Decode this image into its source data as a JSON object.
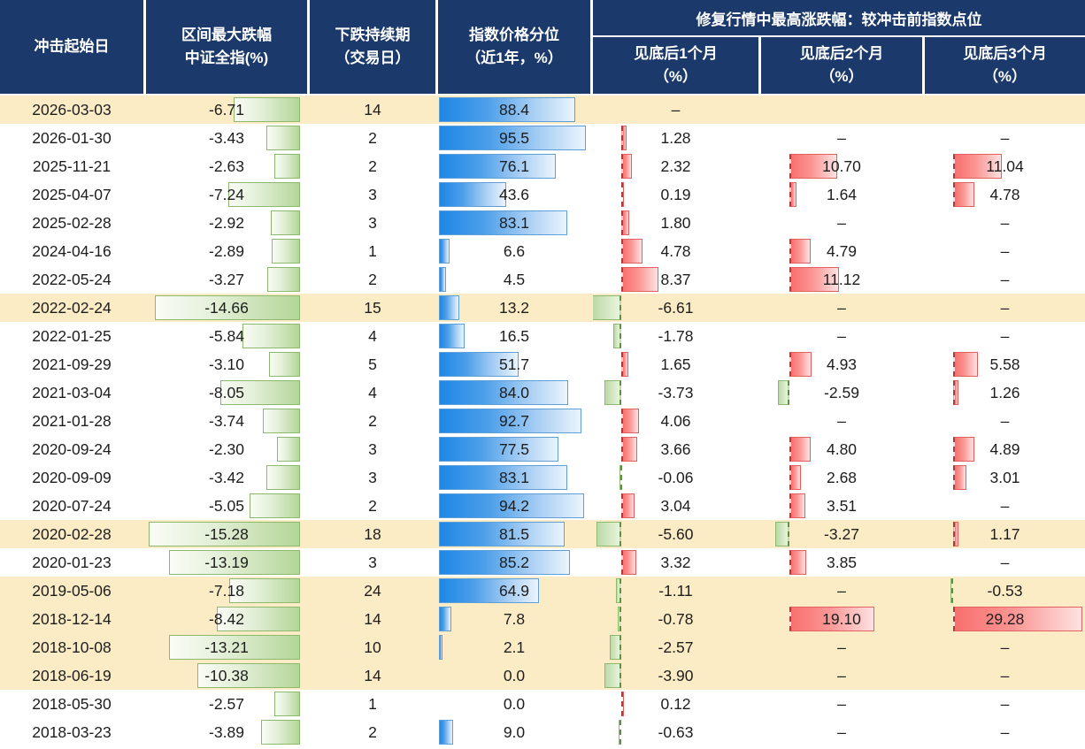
{
  "colors": {
    "header_bg": "#1b3a6b",
    "header_text": "#ffffff",
    "highlight_row_bg": "#fbecc6",
    "drawdown_bar_green": "#b4d698",
    "percentile_bar_blue": "#1e87e6",
    "gain_bar_red": "#f8706e",
    "loss_bar_green": "#bcd9a6"
  },
  "header": {
    "start_date": "冲击起始日",
    "max_drawdown_line1": "区间最大跌幅",
    "max_drawdown_line2": "中证全指(%)",
    "duration_line1": "下跌持续期",
    "duration_line2": "（交易日）",
    "percentile_line1": "指数价格分位",
    "percentile_line2": "（近1年，%）",
    "recovery_title": "修复行情中最高涨跌幅：较冲击前指数点位",
    "month1_line1": "见底后1个月",
    "month1_line2": "（%）",
    "month2_line1": "见底后2个月",
    "month2_line2": "（%）",
    "month3_line1": "见底后3个月",
    "month3_line2": "（%）"
  },
  "chart_data": {
    "type": "table",
    "columns": [
      "冲击起始日",
      "区间最大跌幅 中证全指(%)",
      "下跌持续期（交易日）",
      "指数价格分位（近1年，%）",
      "见底后1个月（%）",
      "见底后2个月（%）",
      "见底后3个月（%）"
    ],
    "rows": [
      {
        "date": "2026-03-03",
        "dd": "-6.71",
        "dur": "14",
        "pct": "88.4",
        "m1": "–",
        "m2": "",
        "m3": "",
        "highlight": true
      },
      {
        "date": "2026-01-30",
        "dd": "-3.43",
        "dur": "2",
        "pct": "95.5",
        "m1": "1.28",
        "m2": "–",
        "m3": "–",
        "highlight": false
      },
      {
        "date": "2025-11-21",
        "dd": "-2.63",
        "dur": "2",
        "pct": "76.1",
        "m1": "2.32",
        "m2": "10.70",
        "m3": "11.04",
        "highlight": false
      },
      {
        "date": "2025-04-07",
        "dd": "-7.24",
        "dur": "3",
        "pct": "43.6",
        "m1": "0.19",
        "m2": "1.64",
        "m3": "4.78",
        "highlight": false
      },
      {
        "date": "2025-02-28",
        "dd": "-2.92",
        "dur": "3",
        "pct": "83.1",
        "m1": "1.80",
        "m2": "–",
        "m3": "–",
        "highlight": false
      },
      {
        "date": "2024-04-16",
        "dd": "-2.89",
        "dur": "1",
        "pct": "6.6",
        "m1": "4.78",
        "m2": "4.79",
        "m3": "–",
        "highlight": false
      },
      {
        "date": "2022-05-24",
        "dd": "-3.27",
        "dur": "2",
        "pct": "4.5",
        "m1": "8.37",
        "m2": "11.12",
        "m3": "–",
        "highlight": false
      },
      {
        "date": "2022-02-24",
        "dd": "-14.66",
        "dur": "15",
        "pct": "13.2",
        "m1": "-6.61",
        "m2": "–",
        "m3": "–",
        "highlight": true
      },
      {
        "date": "2022-01-25",
        "dd": "-5.84",
        "dur": "4",
        "pct": "16.5",
        "m1": "-1.78",
        "m2": "–",
        "m3": "–",
        "highlight": false
      },
      {
        "date": "2021-09-29",
        "dd": "-3.10",
        "dur": "5",
        "pct": "51.7",
        "m1": "1.65",
        "m2": "4.93",
        "m3": "5.58",
        "highlight": false
      },
      {
        "date": "2021-03-04",
        "dd": "-8.05",
        "dur": "4",
        "pct": "84.0",
        "m1": "-3.73",
        "m2": "-2.59",
        "m3": "1.26",
        "highlight": false
      },
      {
        "date": "2021-01-28",
        "dd": "-3.74",
        "dur": "2",
        "pct": "92.7",
        "m1": "4.06",
        "m2": "–",
        "m3": "–",
        "highlight": false
      },
      {
        "date": "2020-09-24",
        "dd": "-2.30",
        "dur": "3",
        "pct": "77.5",
        "m1": "3.66",
        "m2": "4.80",
        "m3": "4.89",
        "highlight": false
      },
      {
        "date": "2020-09-09",
        "dd": "-3.42",
        "dur": "3",
        "pct": "83.1",
        "m1": "-0.06",
        "m2": "2.68",
        "m3": "3.01",
        "highlight": false
      },
      {
        "date": "2020-07-24",
        "dd": "-5.05",
        "dur": "2",
        "pct": "94.2",
        "m1": "3.04",
        "m2": "3.51",
        "m3": "–",
        "highlight": false
      },
      {
        "date": "2020-02-28",
        "dd": "-15.28",
        "dur": "18",
        "pct": "81.5",
        "m1": "-5.60",
        "m2": "-3.27",
        "m3": "1.17",
        "highlight": true
      },
      {
        "date": "2020-01-23",
        "dd": "-13.19",
        "dur": "3",
        "pct": "85.2",
        "m1": "3.32",
        "m2": "3.85",
        "m3": "–",
        "highlight": false
      },
      {
        "date": "2019-05-06",
        "dd": "-7.18",
        "dur": "24",
        "pct": "64.9",
        "m1": "-1.11",
        "m2": "–",
        "m3": "-0.53",
        "highlight": true
      },
      {
        "date": "2018-12-14",
        "dd": "-8.42",
        "dur": "14",
        "pct": "7.8",
        "m1": "-0.78",
        "m2": "19.10",
        "m3": "29.28",
        "highlight": true
      },
      {
        "date": "2018-10-08",
        "dd": "-13.21",
        "dur": "10",
        "pct": "2.1",
        "m1": "-2.57",
        "m2": "–",
        "m3": "–",
        "highlight": true
      },
      {
        "date": "2018-06-19",
        "dd": "-10.38",
        "dur": "14",
        "pct": "0.0",
        "m1": "-3.90",
        "m2": "–",
        "m3": "–",
        "highlight": true
      },
      {
        "date": "2018-05-30",
        "dd": "-2.57",
        "dur": "1",
        "pct": "0.0",
        "m1": "0.12",
        "m2": "–",
        "m3": "–",
        "highlight": false
      },
      {
        "date": "2018-03-23",
        "dd": "-3.89",
        "dur": "2",
        "pct": "9.0",
        "m1": "-0.63",
        "m2": "–",
        "m3": "–",
        "highlight": false
      }
    ]
  }
}
